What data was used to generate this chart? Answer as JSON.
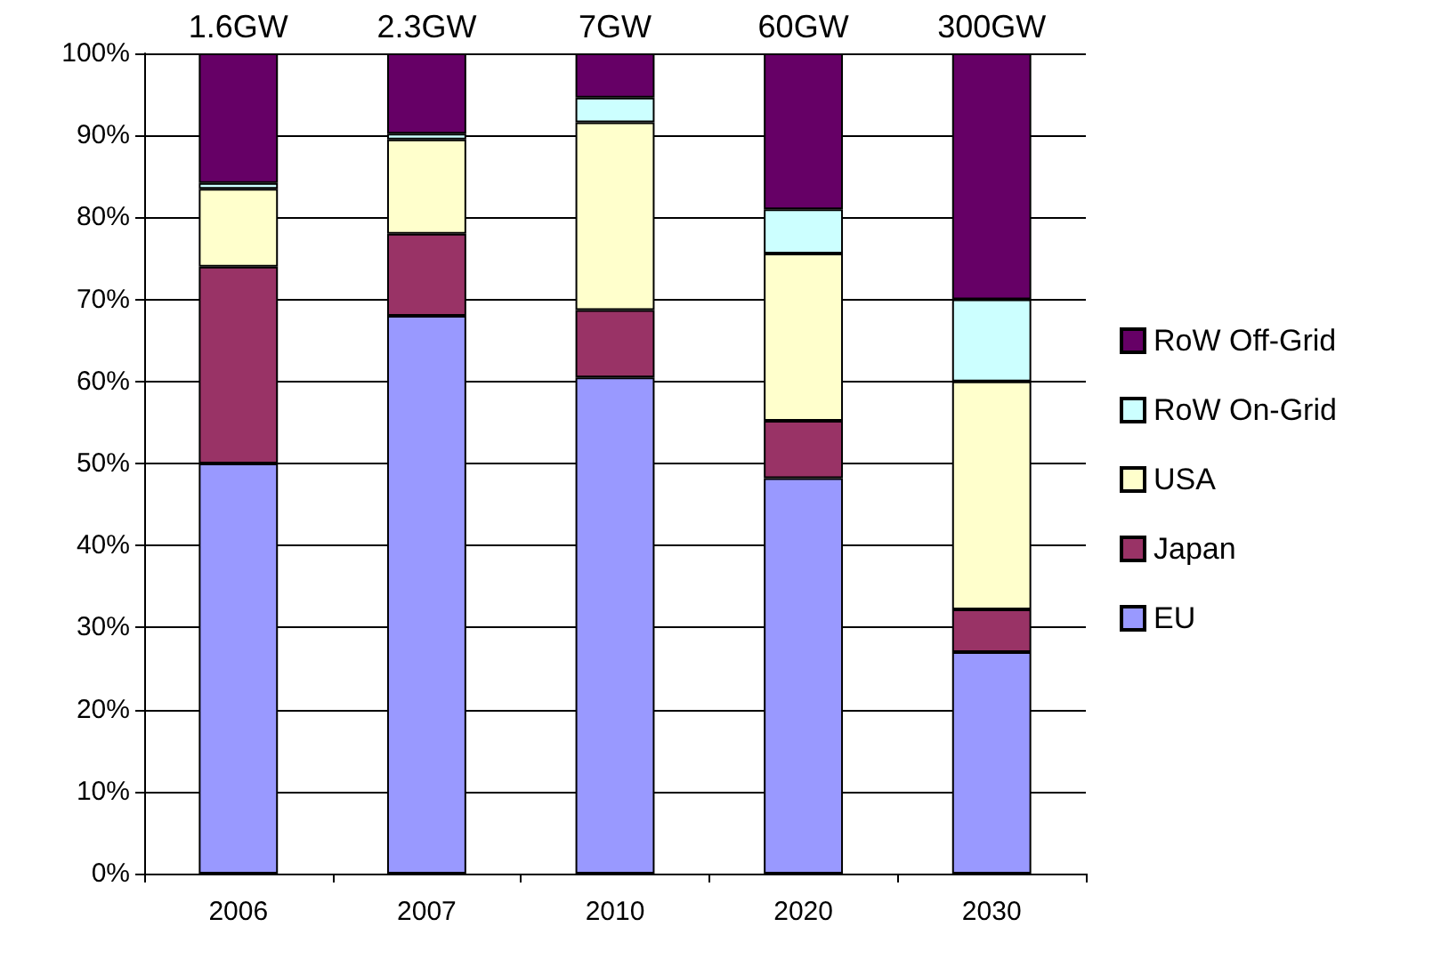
{
  "chart_data": {
    "type": "bar",
    "stacked": true,
    "categories": [
      "2006",
      "2007",
      "2010",
      "2020",
      "2030"
    ],
    "annotations": [
      {
        "text": "1.6GW",
        "x": "2006",
        "y": 100
      },
      {
        "text": "2.3GW",
        "x": "2007",
        "y": 100
      },
      {
        "text": "7GW",
        "x": "2010",
        "y": 100
      },
      {
        "text": "60GW",
        "x": "2020",
        "y": 100
      },
      {
        "text": "300GW",
        "x": "2030",
        "y": 100
      }
    ],
    "series": [
      {
        "name": "EU",
        "color": "#9999ff",
        "values": [
          50,
          68,
          60.5,
          48.2,
          27
        ]
      },
      {
        "name": "Japan",
        "color": "#993366",
        "values": [
          24,
          10,
          8.2,
          7,
          5.2
        ]
      },
      {
        "name": "USA",
        "color": "#ffffcc",
        "values": [
          9.5,
          11.5,
          22.9,
          20.4,
          27.8
        ]
      },
      {
        "name": "RoW On-Grid",
        "color": "#ccffff",
        "values": [
          0.7,
          0.7,
          3,
          5.4,
          10
        ]
      },
      {
        "name": "RoW Off-Grid",
        "color": "#660066",
        "values": [
          15.8,
          9.8,
          5.4,
          19,
          30
        ]
      }
    ],
    "ylim": [
      0,
      100
    ],
    "yticks": [
      {
        "value": 0,
        "label": "0%"
      },
      {
        "value": 10,
        "label": "10%"
      },
      {
        "value": 20,
        "label": "20%"
      },
      {
        "value": 30,
        "label": "30%"
      },
      {
        "value": 40,
        "label": "40%"
      },
      {
        "value": 50,
        "label": "50%"
      },
      {
        "value": 60,
        "label": "60%"
      },
      {
        "value": 70,
        "label": "70%"
      },
      {
        "value": 80,
        "label": "80%"
      },
      {
        "value": 90,
        "label": "90%"
      },
      {
        "value": 100,
        "label": "100%"
      }
    ],
    "grid": "y",
    "legend": "right"
  }
}
